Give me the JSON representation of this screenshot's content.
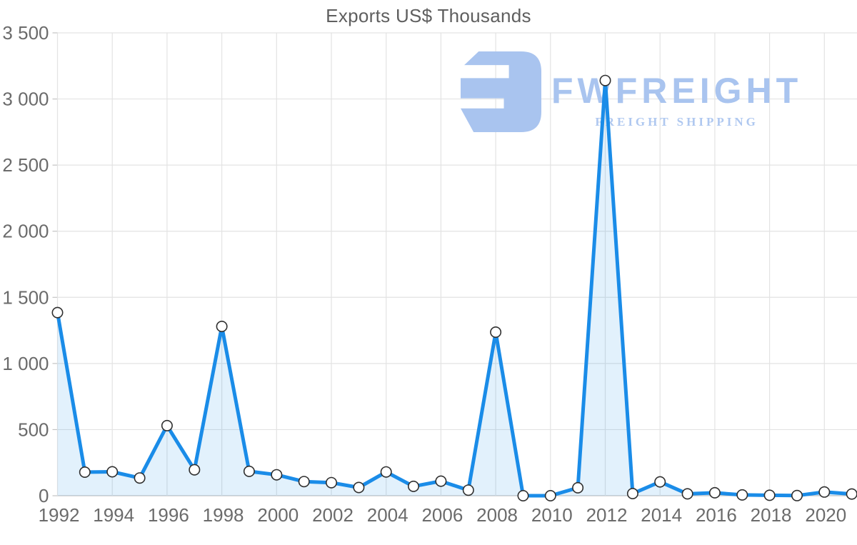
{
  "title": "Exports US$ Thousands",
  "watermark": {
    "brand": "FWFREIGHT",
    "tagline": "FREIGHT SHIPPING",
    "color": "#a9c4ef"
  },
  "colors": {
    "line": "#1a8ce8",
    "area": "rgba(30,144,235,0.13)",
    "marker_fill": "#ffffff",
    "marker_stroke": "#2f2f2f",
    "grid": "#e3e3e3",
    "axis": "#c3c3c3",
    "tick_text": "#6b6b6b",
    "title_text": "#5f5f5f"
  },
  "chart_data": {
    "type": "area",
    "title": "Exports US$ Thousands",
    "xlabel": "",
    "ylabel": "Exports US$ Thousands",
    "series_name": "Exports",
    "x": [
      1992,
      1993,
      1994,
      1995,
      1996,
      1997,
      1998,
      1999,
      2000,
      2001,
      2002,
      2003,
      2004,
      2005,
      2006,
      2007,
      2008,
      2009,
      2010,
      2011,
      2012,
      2013,
      2014,
      2015,
      2016,
      2017,
      2018,
      2019,
      2020,
      2021
    ],
    "values": [
      1385,
      178,
      181,
      134,
      530,
      196,
      1280,
      184,
      158,
      107,
      99,
      62,
      180,
      71,
      110,
      42,
      1237,
      0,
      0,
      60,
      3140,
      16,
      105,
      14,
      22,
      6,
      3,
      1,
      28,
      13
    ],
    "ylim": [
      0,
      3500
    ],
    "y_ticks": [
      0,
      500,
      1000,
      1500,
      2000,
      2500,
      3000,
      3500
    ],
    "y_tick_labels": [
      "0",
      "500",
      "1 000",
      "1 500",
      "2 000",
      "2 500",
      "3 000",
      "3 500"
    ],
    "x_tick_years": [
      1992,
      1994,
      1996,
      1998,
      2000,
      2002,
      2004,
      2006,
      2008,
      2010,
      2012,
      2014,
      2016,
      2018,
      2020
    ],
    "grid": true,
    "legend": "none",
    "marker": "circle"
  }
}
